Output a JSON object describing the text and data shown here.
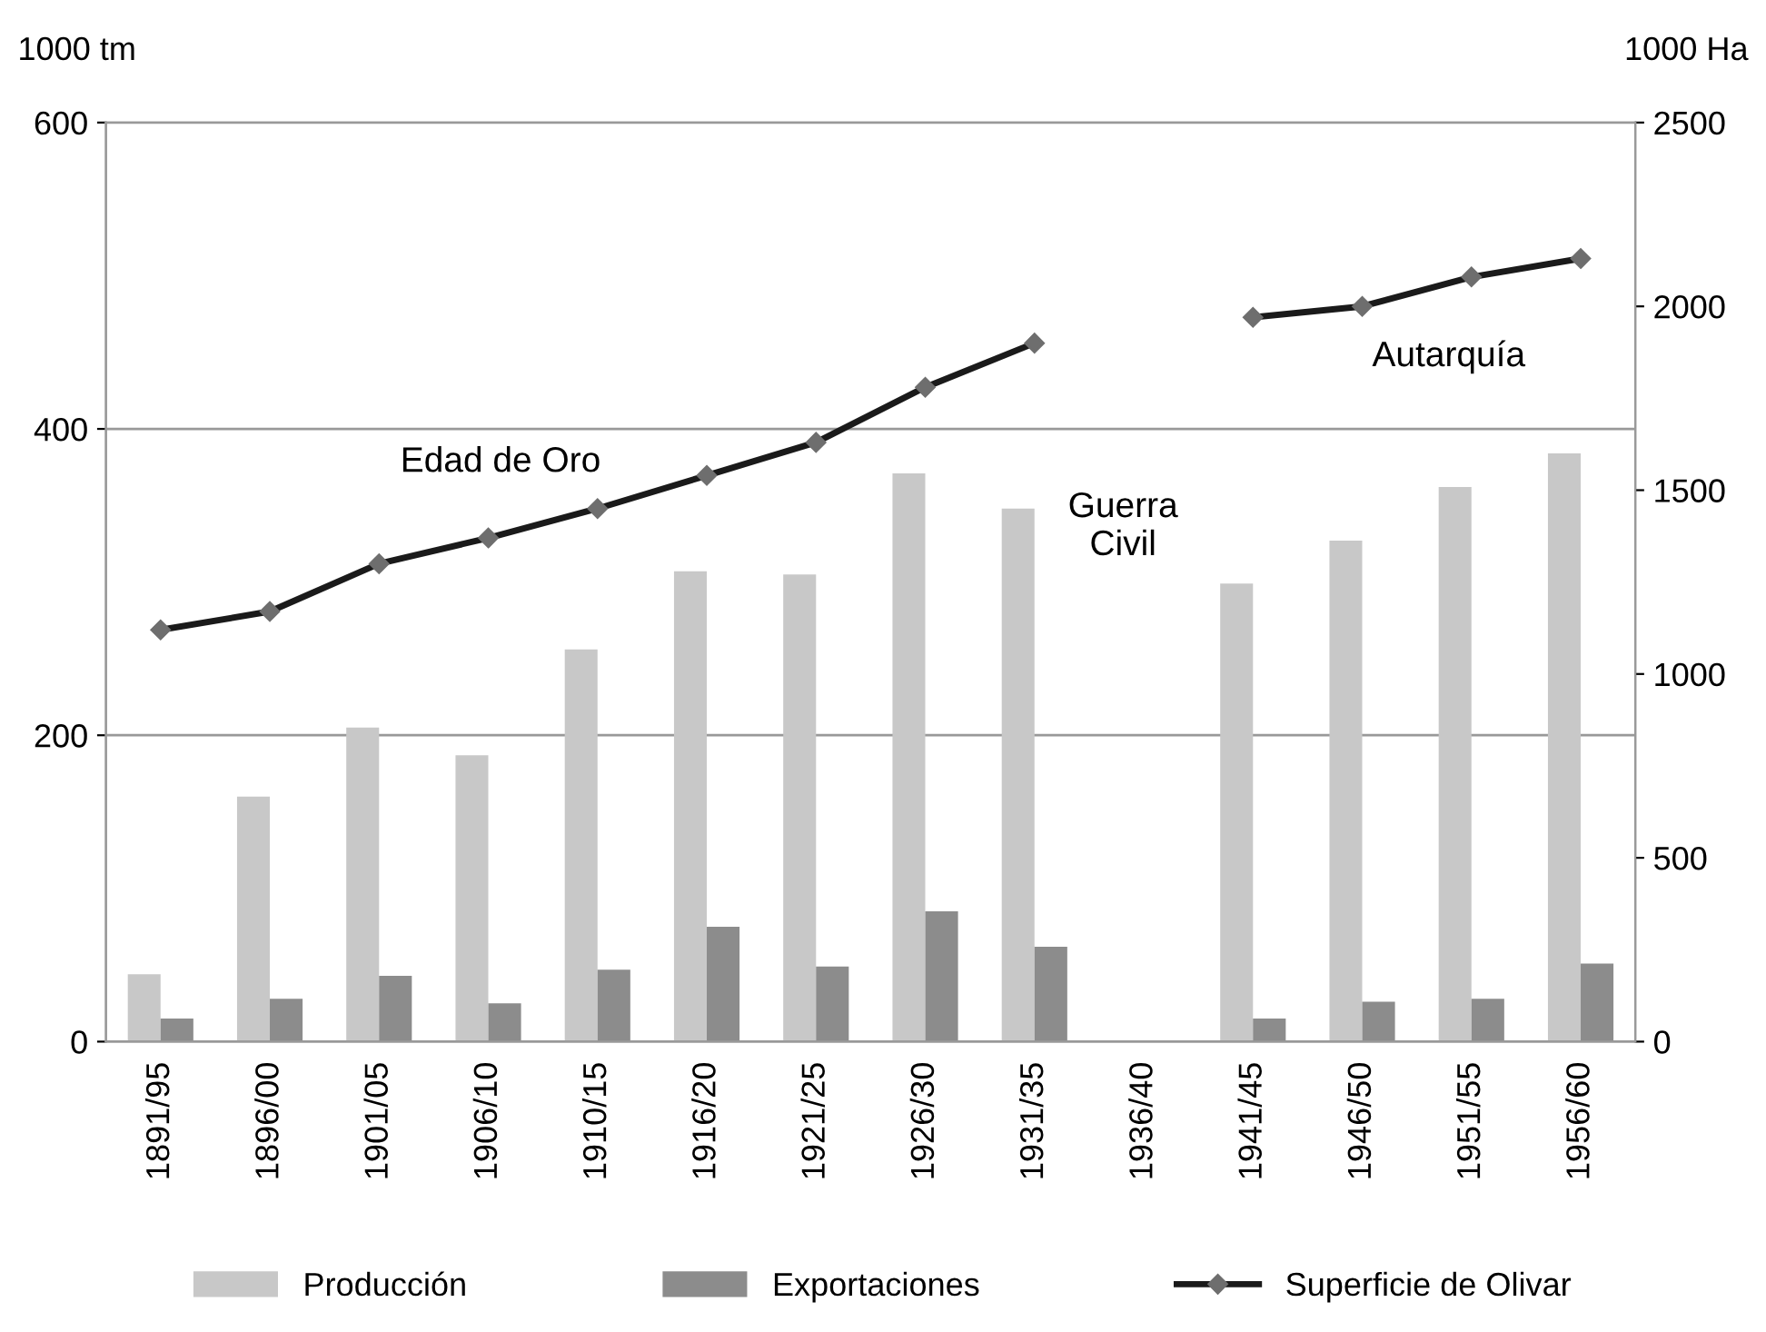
{
  "chart_data": {
    "type": "bar",
    "ylabel": "1000 tm",
    "y2label": "1000 Ha",
    "categories": [
      "1891/95",
      "1896/00",
      "1901/05",
      "1906/10",
      "1910/15",
      "1916/20",
      "1921/25",
      "1926/30",
      "1931/35",
      "1936/40",
      "1941/45",
      "1946/50",
      "1951/55",
      "1956/60"
    ],
    "series": [
      {
        "name": "Producción",
        "color": "#c8c8c8",
        "values": [
          44,
          160,
          205,
          187,
          256,
          307,
          305,
          371,
          348,
          null,
          299,
          327,
          362,
          384
        ]
      },
      {
        "name": "Exportaciones",
        "color": "#8c8c8c",
        "values": [
          15,
          28,
          43,
          25,
          47,
          75,
          49,
          85,
          62,
          null,
          15,
          26,
          28,
          51
        ]
      },
      {
        "name": "Superficie de Olivar",
        "type": "line",
        "axis": "y2",
        "color": "#1a1a1a",
        "marker": "diamond",
        "line_style": "solid",
        "values": [
          1120,
          1170,
          1300,
          1370,
          1450,
          1540,
          1630,
          1780,
          1900,
          null,
          1970,
          2000,
          2080,
          2130
        ]
      }
    ],
    "ylim": [
      0,
      600
    ],
    "yticks": [
      0,
      200,
      400,
      600
    ],
    "y2lim": [
      0,
      2500
    ],
    "y2ticks": [
      0,
      500,
      1000,
      1500,
      2000,
      2500
    ],
    "grid": "y",
    "legend": "bottom",
    "annotations": [
      "Edad de Oro",
      "Guerra\nCivil",
      "Autarquía"
    ]
  }
}
